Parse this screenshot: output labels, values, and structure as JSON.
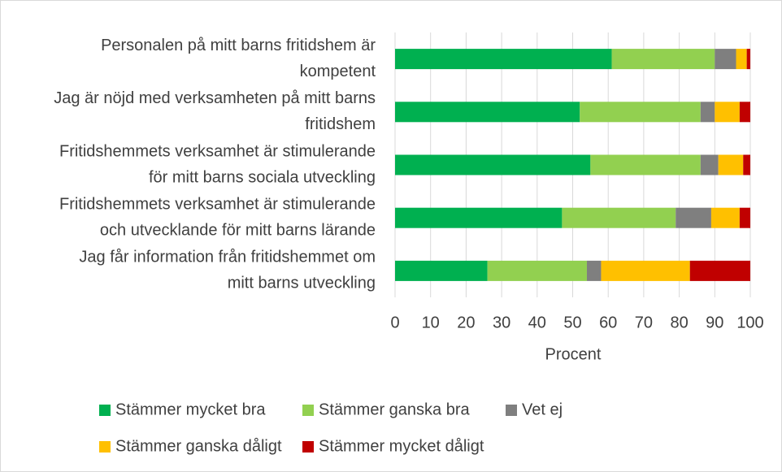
{
  "chart_data": {
    "type": "stacked-barh",
    "categories": [
      [
        "Personalen på mitt barns fritidshem är",
        "kompetent"
      ],
      [
        "Jag är nöjd med verksamheten på mitt barns",
        "fritidshem"
      ],
      [
        "Fritidshemmets verksamhet är stimulerande",
        "för mitt barns sociala utveckling"
      ],
      [
        "Fritidshemmets verksamhet är stimulerande",
        "och utvecklande för mitt barns lärande"
      ],
      [
        "Jag får information från fritidshemmet om",
        "mitt barns utveckling"
      ]
    ],
    "series": [
      {
        "name": "Stämmer mycket bra",
        "color": "#00b050",
        "values": [
          61,
          52,
          55,
          47,
          26
        ]
      },
      {
        "name": "Stämmer ganska bra",
        "color": "#92d050",
        "values": [
          29,
          34,
          31,
          32,
          28
        ]
      },
      {
        "name": "Vet ej",
        "color": "#7f7f7f",
        "values": [
          6,
          4,
          5,
          10,
          4
        ]
      },
      {
        "name": "Stämmer ganska dåligt",
        "color": "#ffc000",
        "values": [
          3,
          7,
          7,
          8,
          25
        ]
      },
      {
        "name": "Stämmer mycket dåligt",
        "color": "#c00000",
        "values": [
          1,
          3,
          2,
          3,
          17
        ]
      }
    ],
    "xlabel": "Procent",
    "xlim": [
      0,
      100
    ],
    "xticks": [
      0,
      10,
      20,
      30,
      40,
      50,
      60,
      70,
      80,
      90,
      100
    ],
    "grid": true,
    "legend": "bottom"
  }
}
